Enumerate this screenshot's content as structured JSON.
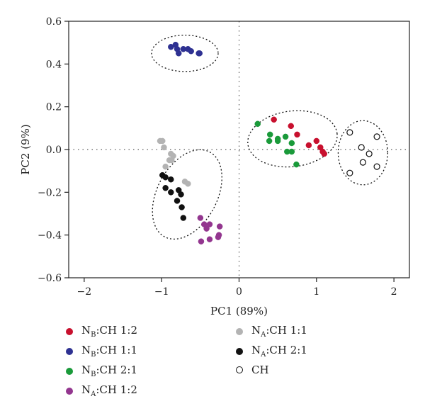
{
  "chart_data": {
    "type": "scatter",
    "xlabel": "PC1 (89%)",
    "ylabel": "PC2 (9%)",
    "xlim": [
      -2.2,
      2.2
    ],
    "ylim": [
      -0.6,
      0.6
    ],
    "xticks": [
      -2,
      -1,
      0,
      1,
      2
    ],
    "yticks": [
      -0.6,
      -0.4,
      -0.2,
      0.0,
      0.2,
      0.4,
      0.6
    ],
    "xtick_labels": [
      "−2",
      "−1",
      "0",
      "1",
      "2"
    ],
    "ytick_labels": [
      "−0.6",
      "−0.4",
      "−0.2",
      "0.0",
      "0.2",
      "0.4",
      "0.6"
    ],
    "grid": false,
    "zero_lines": true,
    "legend_position": "bottom",
    "series": [
      {
        "name": "N_B:CH 1:2",
        "label_parts": [
          "N",
          "B",
          ":CH 1:2"
        ],
        "color": "#c8102e",
        "filled": true,
        "points": [
          [
            0.45,
            0.14
          ],
          [
            0.67,
            0.11
          ],
          [
            0.75,
            0.07
          ],
          [
            0.9,
            0.02
          ],
          [
            1.0,
            0.04
          ],
          [
            1.05,
            0.01
          ],
          [
            1.08,
            -0.01
          ],
          [
            1.1,
            -0.02
          ]
        ]
      },
      {
        "name": "N_B:CH 1:1",
        "label_parts": [
          "N",
          "B",
          ":CH 1:1"
        ],
        "color": "#2e3192",
        "filled": true,
        "points": [
          [
            -0.88,
            0.48
          ],
          [
            -0.82,
            0.49
          ],
          [
            -0.8,
            0.47
          ],
          [
            -0.78,
            0.45
          ],
          [
            -0.72,
            0.47
          ],
          [
            -0.66,
            0.47
          ],
          [
            -0.62,
            0.46
          ],
          [
            -0.52,
            0.45
          ],
          [
            -0.51,
            0.45
          ]
        ]
      },
      {
        "name": "N_B:CH 2:1",
        "label_parts": [
          "N",
          "B",
          ":CH 2:1"
        ],
        "color": "#1a9a3a",
        "filled": true,
        "points": [
          [
            0.24,
            0.12
          ],
          [
            0.4,
            0.07
          ],
          [
            0.39,
            0.04
          ],
          [
            0.5,
            0.05
          ],
          [
            0.5,
            0.04
          ],
          [
            0.6,
            0.06
          ],
          [
            0.68,
            0.03
          ],
          [
            0.62,
            -0.01
          ],
          [
            0.68,
            -0.01
          ],
          [
            0.74,
            -0.07
          ]
        ]
      },
      {
        "name": "N_A:CH 1:2",
        "label_parts": [
          "N",
          "A",
          ":CH 1:2"
        ],
        "color": "#93368f",
        "filled": true,
        "points": [
          [
            -0.5,
            -0.32
          ],
          [
            -0.45,
            -0.35
          ],
          [
            -0.42,
            -0.37
          ],
          [
            -0.38,
            -0.35
          ],
          [
            -0.25,
            -0.36
          ],
          [
            -0.26,
            -0.4
          ],
          [
            -0.27,
            -0.41
          ],
          [
            -0.38,
            -0.42
          ],
          [
            -0.49,
            -0.43
          ]
        ]
      },
      {
        "name": "N_A:CH 1:1",
        "label_parts": [
          "N",
          "A",
          ":CH 1:1"
        ],
        "color": "#b3b3b3",
        "filled": true,
        "points": [
          [
            -1.02,
            0.04
          ],
          [
            -0.99,
            0.04
          ],
          [
            -0.97,
            0.01
          ],
          [
            -0.88,
            -0.02
          ],
          [
            -0.85,
            -0.03
          ],
          [
            -0.9,
            -0.05
          ],
          [
            -0.87,
            -0.05
          ],
          [
            -0.95,
            -0.08
          ],
          [
            -0.7,
            -0.15
          ],
          [
            -0.66,
            -0.16
          ]
        ]
      },
      {
        "name": "N_A:CH 2:1",
        "label_parts": [
          "N",
          "A",
          ":CH 2:1"
        ],
        "color": "#111111",
        "filled": true,
        "points": [
          [
            -0.99,
            -0.12
          ],
          [
            -0.95,
            -0.13
          ],
          [
            -0.88,
            -0.14
          ],
          [
            -0.95,
            -0.18
          ],
          [
            -0.78,
            -0.19
          ],
          [
            -0.88,
            -0.2
          ],
          [
            -0.75,
            -0.21
          ],
          [
            -0.8,
            -0.24
          ],
          [
            -0.74,
            -0.27
          ],
          [
            -0.72,
            -0.32
          ]
        ]
      },
      {
        "name": "CH",
        "label_parts": [
          "CH",
          "",
          ""
        ],
        "color": "#111111",
        "filled": false,
        "points": [
          [
            1.43,
            0.08
          ],
          [
            1.78,
            0.06
          ],
          [
            1.58,
            0.01
          ],
          [
            1.68,
            -0.02
          ],
          [
            1.6,
            -0.06
          ],
          [
            1.78,
            -0.08
          ],
          [
            1.43,
            -0.11
          ]
        ]
      }
    ],
    "ellipses": [
      {
        "cx": -0.7,
        "cy": 0.45,
        "rx": 0.43,
        "ry": 0.085,
        "angle": 0
      },
      {
        "cx": 0.69,
        "cy": 0.05,
        "rx": 0.58,
        "ry": 0.13,
        "angle": -7
      },
      {
        "cx": 1.6,
        "cy": -0.015,
        "rx": 0.32,
        "ry": 0.15,
        "angle": 0
      },
      {
        "cx": -0.67,
        "cy": -0.21,
        "rx": 0.62,
        "ry": 0.14,
        "angle": -62
      }
    ]
  }
}
